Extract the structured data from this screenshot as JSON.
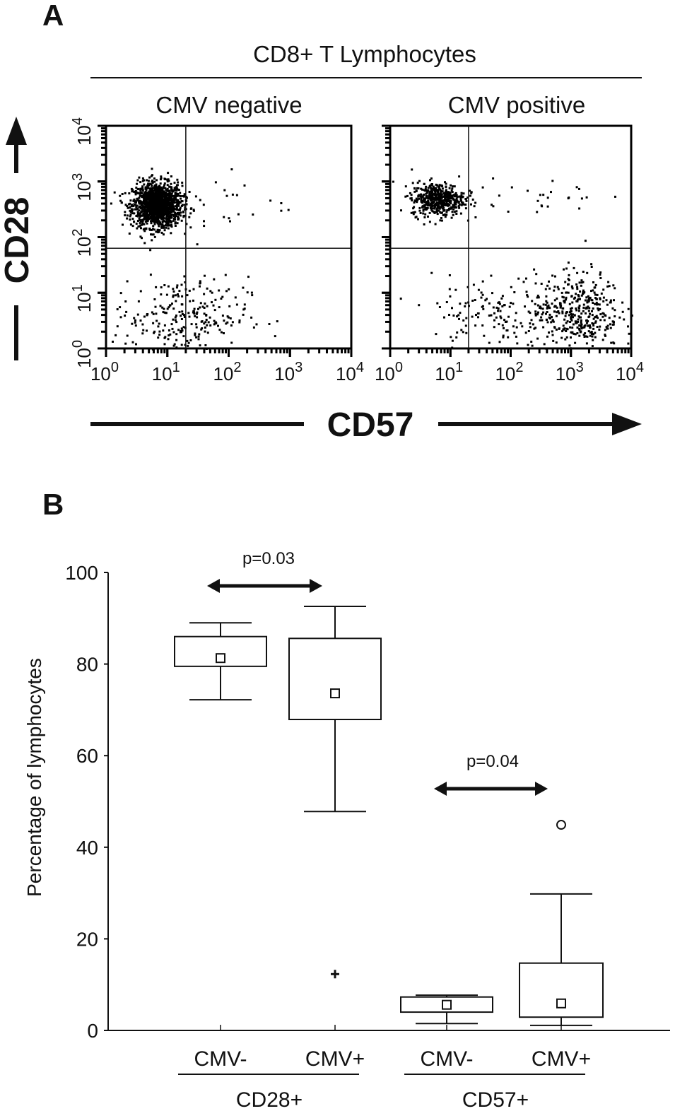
{
  "panel_a": {
    "label": "A",
    "header": "CD8+ T Lymphocytes",
    "y_axis_label": "CD28",
    "x_axis_label": "CD57"
  },
  "panel_b": {
    "label": "B"
  },
  "chart_data": [
    {
      "type": "scatter",
      "title": "CMV negative",
      "xscale": "log",
      "yscale": "log",
      "xlim": [
        1,
        10000
      ],
      "ylim": [
        1,
        10000
      ],
      "x_ticks": [
        "10^0",
        "10^1",
        "10^2",
        "10^3",
        "10^4"
      ],
      "y_ticks": [
        "10^0",
        "10^1",
        "10^2",
        "10^3",
        "10^4"
      ],
      "quadrant_gates": {
        "x": 20,
        "y": 63
      },
      "populations": [
        {
          "center": [
            6.6,
            390
          ],
          "spread_decades": [
            0.2,
            0.2
          ],
          "count": 1400
        },
        {
          "center": [
            16,
            4
          ],
          "spread_decades": [
            0.55,
            0.35
          ],
          "count": 260
        },
        {
          "center": [
            60,
            400
          ],
          "spread_decades": [
            0.6,
            0.3
          ],
          "count": 30
        }
      ]
    },
    {
      "type": "scatter",
      "title": "CMV positive",
      "xscale": "log",
      "yscale": "log",
      "xlim": [
        1,
        10000
      ],
      "ylim": [
        1,
        10000
      ],
      "x_ticks": [
        "10^0",
        "10^1",
        "10^2",
        "10^3",
        "10^4"
      ],
      "quadrant_gates": {
        "x": 20,
        "y": 63
      },
      "populations": [
        {
          "center": [
            6,
            500
          ],
          "spread_decades": [
            0.22,
            0.15
          ],
          "count": 500
        },
        {
          "center": [
            1250,
            5
          ],
          "spread_decades": [
            0.35,
            0.35
          ],
          "count": 380
        },
        {
          "center": [
            60,
            4
          ],
          "spread_decades": [
            0.55,
            0.35
          ],
          "count": 160
        },
        {
          "center": [
            200,
            500
          ],
          "spread_decades": [
            0.6,
            0.2
          ],
          "count": 30
        }
      ]
    },
    {
      "type": "box",
      "ylabel": "Percentage of lymphocytes",
      "ylim": [
        0,
        100
      ],
      "y_ticks": [
        0,
        20,
        40,
        60,
        80,
        100
      ],
      "categories": [
        "CMV-",
        "CMV+",
        "CMV-",
        "CMV+"
      ],
      "groups": [
        {
          "label": "CD28+",
          "categories": [
            0,
            1
          ],
          "p_value": "p=0.03"
        },
        {
          "label": "CD57+",
          "categories": [
            2,
            3
          ],
          "p_value": "p=0.04"
        }
      ],
      "boxes": [
        {
          "whisker_low": 72.2,
          "q1": 79.5,
          "q3": 86,
          "whisker_high": 89,
          "mean": 81.3,
          "outliers": []
        },
        {
          "whisker_low": 47.8,
          "q1": 67.9,
          "q3": 85.6,
          "whisker_high": 92.6,
          "mean": 73.6,
          "outliers": [
            {
              "value": 12.3,
              "marker": "plus"
            }
          ]
        },
        {
          "whisker_low": 1.5,
          "q1": 4,
          "q3": 7.3,
          "whisker_high": 7.7,
          "mean": 5.6,
          "outliers": []
        },
        {
          "whisker_low": 1.1,
          "q1": 2.9,
          "q3": 14.7,
          "whisker_high": 29.8,
          "mean": 5.9,
          "outliers": [
            {
              "value": 44.9,
              "marker": "circle"
            }
          ]
        }
      ]
    }
  ]
}
